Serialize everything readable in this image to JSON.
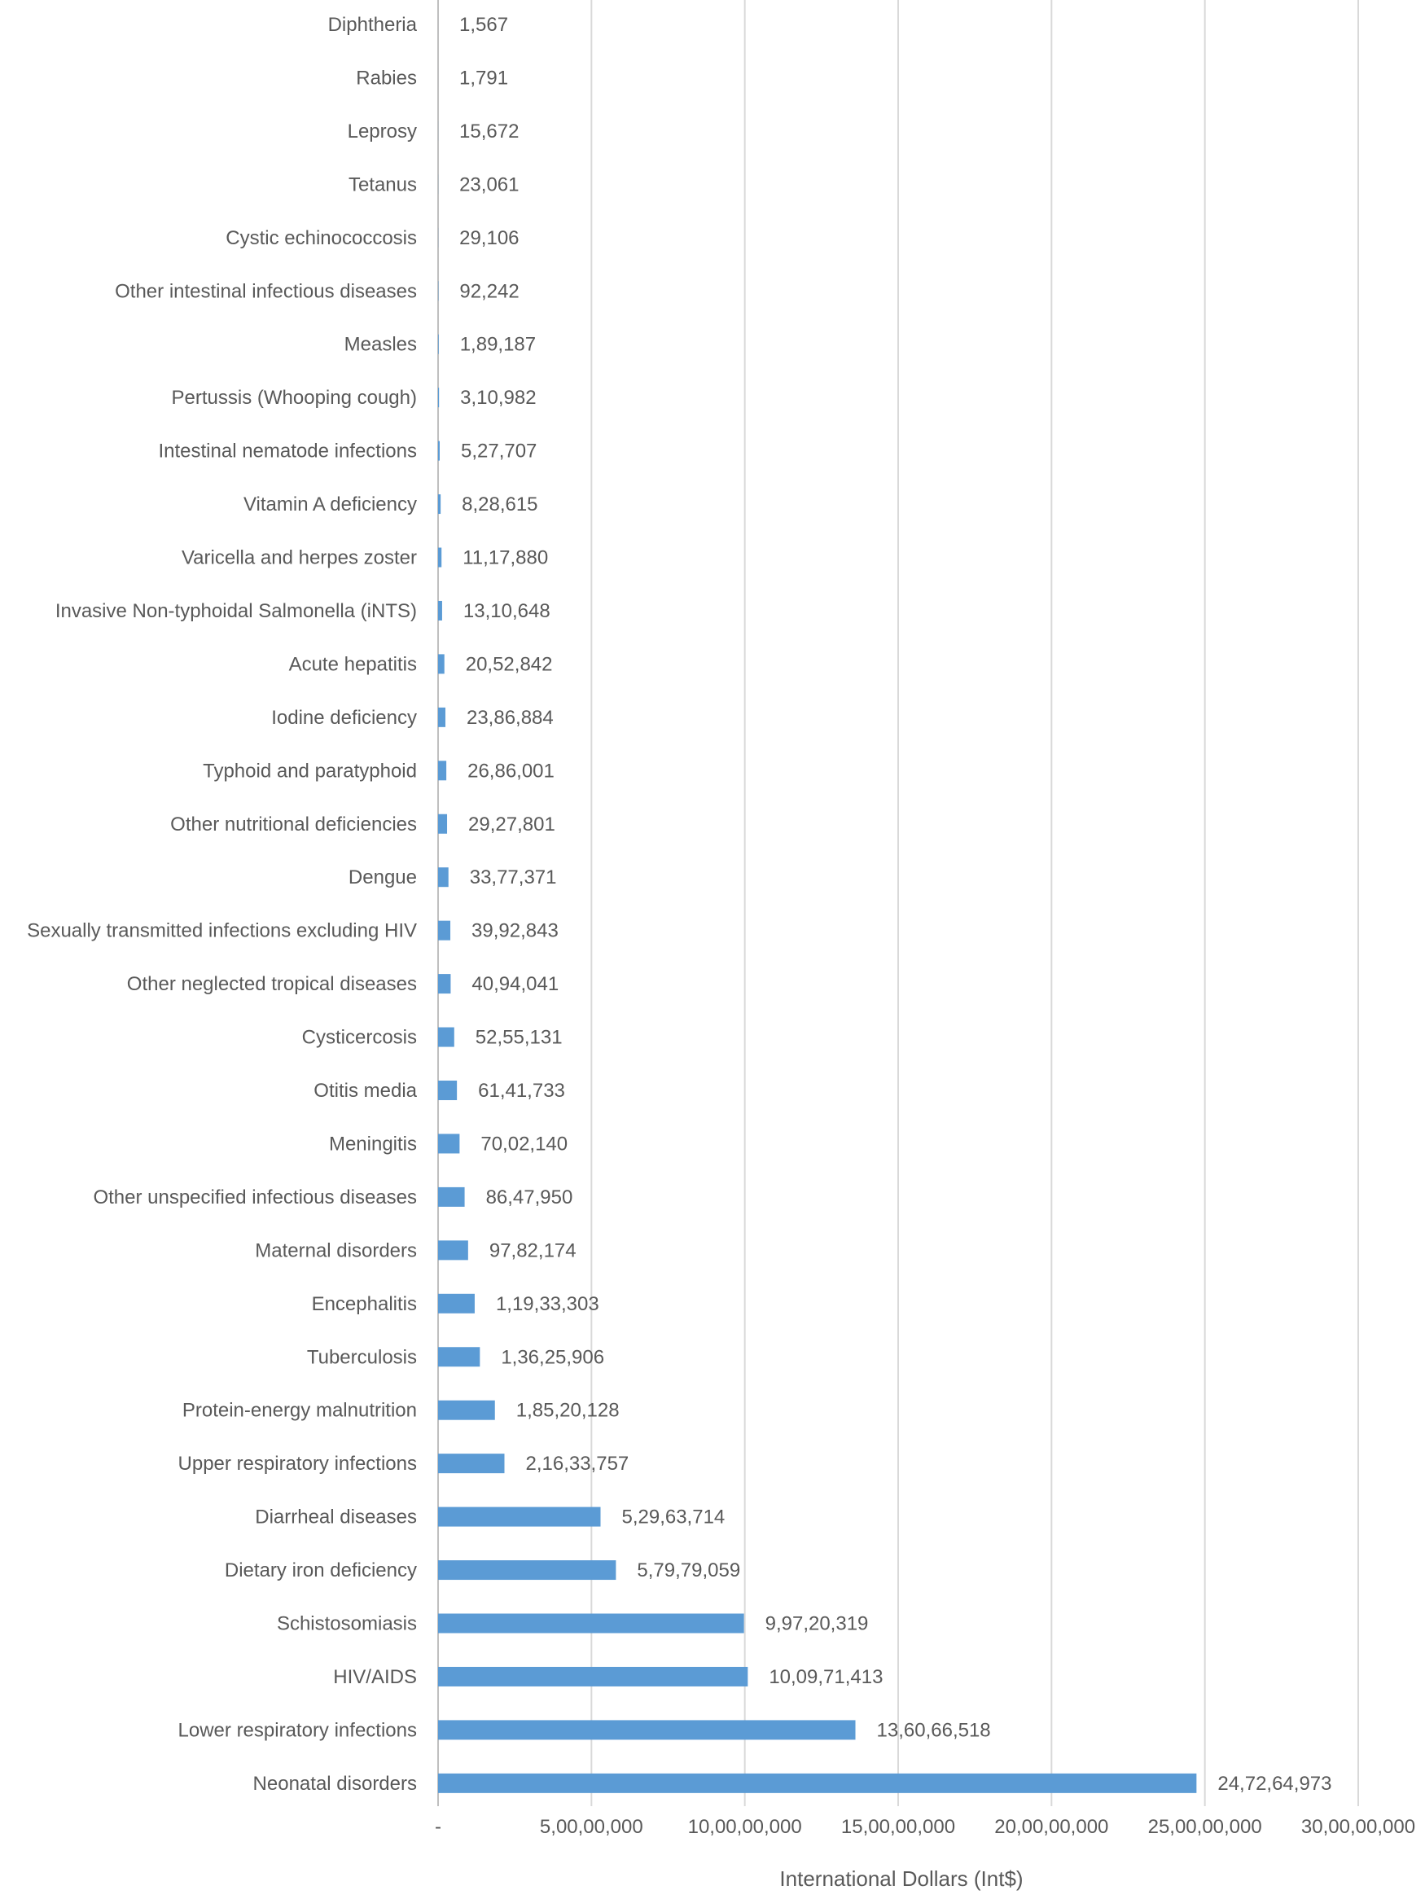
{
  "chart_data": {
    "type": "bar",
    "orientation": "horizontal",
    "title": "",
    "xlabel": "International Dollars (Int$)",
    "ylabel": "",
    "xlim": [
      0,
      300000000
    ],
    "x_ticks": [
      0,
      50000000,
      100000000,
      150000000,
      200000000,
      250000000,
      300000000
    ],
    "x_tick_labels": [
      "-",
      "5,00,00,000",
      "10,00,00,000",
      "15,00,00,000",
      "20,00,00,000",
      "25,00,00,000",
      "30,00,00,000"
    ],
    "grid": "vertical",
    "legend": "none",
    "bar_color": "#5B9BD5",
    "categories": [
      "Diphtheria",
      "Rabies",
      "Leprosy",
      "Tetanus",
      "Cystic echinococcosis",
      "Other intestinal infectious diseases",
      "Measles",
      "Pertussis  (Whooping cough)",
      "Intestinal nematode infections",
      "Vitamin A deficiency",
      "Varicella and herpes zoster",
      "Invasive Non-typhoidal Salmonella (iNTS)",
      "Acute hepatitis",
      "Iodine deficiency",
      "Typhoid and paratyphoid",
      "Other nutritional deficiencies",
      "Dengue",
      "Sexually transmitted infections excluding HIV",
      "Other neglected tropical diseases",
      "Cysticercosis",
      "Otitis media",
      "Meningitis",
      "Other unspecified infectious diseases",
      "Maternal disorders",
      "Encephalitis",
      "Tuberculosis",
      "Protein-energy malnutrition",
      "Upper respiratory infections",
      "Diarrheal diseases",
      "Dietary iron deficiency",
      "Schistosomiasis",
      "HIV/AIDS",
      "Lower respiratory infections",
      "Neonatal disorders"
    ],
    "values": [
      1567,
      1791,
      15672,
      23061,
      29106,
      92242,
      189187,
      310982,
      527707,
      828615,
      1117880,
      1310648,
      2052842,
      2386884,
      2686001,
      2927801,
      3377371,
      3992843,
      4094041,
      5255131,
      6141733,
      7002140,
      8647950,
      9782174,
      11933303,
      13625906,
      18520128,
      21633757,
      52963714,
      57979059,
      99720319,
      100971413,
      136066518,
      247264973
    ],
    "value_labels": [
      "1,567",
      "1,791",
      "15,672",
      "23,061",
      "29,106",
      "92,242",
      "1,89,187",
      "3,10,982",
      "5,27,707",
      "8,28,615",
      "11,17,880",
      "13,10,648",
      "20,52,842",
      "23,86,884",
      "26,86,001",
      "29,27,801",
      "33,77,371",
      "39,92,843",
      "40,94,041",
      "52,55,131",
      "61,41,733",
      "70,02,140",
      "86,47,950",
      "97,82,174",
      "1,19,33,303",
      "1,36,25,906",
      "1,85,20,128",
      "2,16,33,757",
      "5,29,63,714",
      "5,79,79,059",
      "9,97,20,319",
      "10,09,71,413",
      "13,60,66,518",
      "24,72,64,973"
    ]
  }
}
